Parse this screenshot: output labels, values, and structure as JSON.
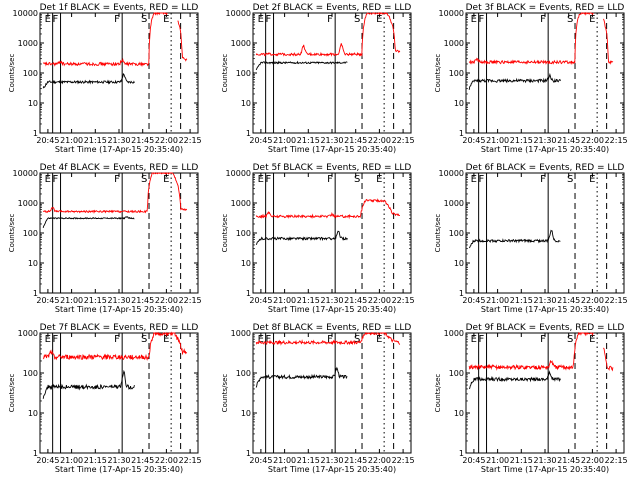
{
  "colors": {
    "events": "#000000",
    "lld": "#ff0000",
    "axis": "#000000",
    "background": "#ffffff"
  },
  "shared": {
    "xlabel": "Start Time (17-Apr-15 20:35:40)",
    "ylabel": "Counts/sec",
    "x_ticks": [
      "20:45",
      "21:00",
      "21:15",
      "21:30",
      "21:45",
      "22:00",
      "22:15"
    ],
    "y_ticks": [
      "1",
      "10",
      "100",
      "1000",
      "10000"
    ],
    "xlim_minutes_after_20_40": [
      0,
      100
    ],
    "ylim": [
      1,
      10000
    ],
    "yscale": "log",
    "marker_letters": {
      "E": "E",
      "F": "F",
      "S": "S"
    }
  },
  "chart_data": [
    {
      "type": "line",
      "title": "Det 1f BLACK = Events, RED = LLD",
      "ylim": [
        1,
        10000
      ],
      "markers": [
        {
          "label": "E",
          "x": "20:48",
          "style": "solid"
        },
        {
          "label": "F",
          "x": "20:53",
          "style": "solid"
        },
        {
          "label": "F",
          "x": "21:32",
          "style": "solid"
        },
        {
          "label": "S",
          "x": "21:49",
          "style": "dashed"
        },
        {
          "label": "E",
          "x": "22:03",
          "style": "dotted"
        },
        {
          "label": "",
          "x": "22:09",
          "style": "dashed"
        }
      ],
      "series": [
        {
          "name": "Events",
          "color": "black",
          "start": "20:42",
          "end": "21:40",
          "level": 50,
          "initial": 30,
          "bumps": [
            {
              "x": "21:33",
              "height": 90
            }
          ],
          "noise": 0.04,
          "gaps": []
        },
        {
          "name": "LLD",
          "color": "red",
          "start": "20:42",
          "end": "22:13",
          "level": 200,
          "bumps": [
            {
              "x": "20:53",
              "height": 240
            },
            {
              "x": "21:32",
              "height": 260
            }
          ],
          "noise": 0.05,
          "flare": {
            "start": "21:49",
            "end": "22:10",
            "peak": 10000,
            "after": 300
          },
          "gaps": [
            [
              "22:01",
              "22:07"
            ]
          ]
        }
      ]
    },
    {
      "type": "line",
      "title": "Det 2f BLACK = Events, RED = LLD",
      "ylim": [
        1,
        10000
      ],
      "markers": [
        {
          "label": "E",
          "x": "20:48",
          "style": "solid"
        },
        {
          "label": "F",
          "x": "20:53",
          "style": "solid"
        },
        {
          "label": "F",
          "x": "21:32",
          "style": "solid"
        },
        {
          "label": "S",
          "x": "21:49",
          "style": "dashed"
        },
        {
          "label": "E",
          "x": "22:03",
          "style": "dotted"
        },
        {
          "label": "",
          "x": "22:09",
          "style": "dashed"
        }
      ],
      "series": [
        {
          "name": "Events",
          "color": "black",
          "start": "20:42",
          "end": "21:40",
          "level": 220,
          "initial": 120,
          "bumps": [],
          "noise": 0.03,
          "gaps": []
        },
        {
          "name": "LLD",
          "color": "red",
          "start": "20:42",
          "end": "22:13",
          "level": 420,
          "bumps": [
            {
              "x": "21:12",
              "height": 800
            },
            {
              "x": "21:36",
              "height": 900
            }
          ],
          "noise": 0.04,
          "flare": {
            "start": "21:49",
            "end": "22:10",
            "peak": 10000,
            "after": 550
          },
          "gaps": []
        }
      ]
    },
    {
      "type": "line",
      "title": "Det 3f BLACK = Events, RED = LLD",
      "ylim": [
        1,
        10000
      ],
      "markers": [
        {
          "label": "E",
          "x": "20:48",
          "style": "solid"
        },
        {
          "label": "F",
          "x": "20:53",
          "style": "solid"
        },
        {
          "label": "F",
          "x": "21:32",
          "style": "solid"
        },
        {
          "label": "S",
          "x": "21:49",
          "style": "dashed"
        },
        {
          "label": "E",
          "x": "22:03",
          "style": "dotted"
        },
        {
          "label": "",
          "x": "22:09",
          "style": "dashed"
        }
      ],
      "series": [
        {
          "name": "Events",
          "color": "black",
          "start": "20:42",
          "end": "21:40",
          "level": 55,
          "initial": 30,
          "bumps": [
            {
              "x": "21:33",
              "height": 80
            }
          ],
          "noise": 0.05,
          "gaps": []
        },
        {
          "name": "LLD",
          "color": "red",
          "start": "20:42",
          "end": "22:13",
          "level": 230,
          "bumps": [
            {
              "x": "20:47",
              "height": 300
            }
          ],
          "noise": 0.05,
          "flare": {
            "start": "21:49",
            "end": "22:10",
            "peak": 10000,
            "after": 240
          },
          "gaps": [
            [
              "22:01",
              "22:07"
            ]
          ]
        }
      ]
    },
    {
      "type": "line",
      "title": "Det 4f BLACK = Events, RED = LLD",
      "ylim": [
        1,
        10000
      ],
      "markers": [
        {
          "label": "E",
          "x": "20:48",
          "style": "solid"
        },
        {
          "label": "F",
          "x": "20:53",
          "style": "solid"
        },
        {
          "label": "F",
          "x": "21:32",
          "style": "solid"
        },
        {
          "label": "S",
          "x": "21:49",
          "style": "dashed"
        },
        {
          "label": "E",
          "x": "22:03",
          "style": "dotted"
        },
        {
          "label": "",
          "x": "22:09",
          "style": "dashed"
        }
      ],
      "series": [
        {
          "name": "Events",
          "color": "black",
          "start": "20:42",
          "end": "21:40",
          "level": 310,
          "initial": 150,
          "bumps": [
            {
              "x": "21:35",
              "height": 340
            }
          ],
          "noise": 0.02,
          "gaps": []
        },
        {
          "name": "LLD",
          "color": "red",
          "start": "20:42",
          "end": "22:13",
          "level": 520,
          "bumps": [
            {
              "x": "20:48",
              "height": 700
            }
          ],
          "noise": 0.03,
          "flare": {
            "start": "21:48",
            "end": "22:09",
            "peak": 10000,
            "after": 650
          },
          "gaps": []
        }
      ]
    },
    {
      "type": "line",
      "title": "Det 5f BLACK = Events, RED = LLD",
      "ylim": [
        1,
        10000
      ],
      "markers": [
        {
          "label": "E",
          "x": "20:48",
          "style": "solid"
        },
        {
          "label": "F",
          "x": "20:53",
          "style": "solid"
        },
        {
          "label": "F",
          "x": "21:32",
          "style": "solid"
        },
        {
          "label": "S",
          "x": "21:49",
          "style": "dashed"
        },
        {
          "label": "E",
          "x": "22:03",
          "style": "dotted"
        },
        {
          "label": "",
          "x": "22:09",
          "style": "dashed"
        }
      ],
      "series": [
        {
          "name": "Events",
          "color": "black",
          "start": "20:42",
          "end": "21:40",
          "level": 65,
          "initial": 40,
          "bumps": [
            {
              "x": "21:34",
              "height": 110
            }
          ],
          "noise": 0.04,
          "gaps": []
        },
        {
          "name": "LLD",
          "color": "red",
          "start": "20:42",
          "end": "22:13",
          "level": 360,
          "bumps": [
            {
              "x": "20:50",
              "height": 480
            },
            {
              "x": "21:30",
              "height": 420
            }
          ],
          "noise": 0.04,
          "flare": {
            "start": "21:48",
            "end": "22:08",
            "peak": 1200,
            "after": 450
          },
          "gaps": []
        }
      ]
    },
    {
      "type": "line",
      "title": "Det 6f BLACK = Events, RED = LLD",
      "ylim": [
        1,
        10000
      ],
      "markers": [
        {
          "label": "E",
          "x": "20:48",
          "style": "solid"
        },
        {
          "label": "F",
          "x": "20:53",
          "style": "solid"
        },
        {
          "label": "F",
          "x": "21:32",
          "style": "solid"
        },
        {
          "label": "S",
          "x": "21:49",
          "style": "dashed"
        },
        {
          "label": "E",
          "x": "22:03",
          "style": "dotted"
        },
        {
          "label": "",
          "x": "22:09",
          "style": "dashed"
        }
      ],
      "series": [
        {
          "name": "Events",
          "color": "black",
          "start": "20:42",
          "end": "21:40",
          "level": 55,
          "initial": 30,
          "bumps": [
            {
              "x": "21:34",
              "height": 120
            }
          ],
          "noise": 0.04,
          "gaps": []
        }
      ]
    },
    {
      "type": "line",
      "title": "Det 7f BLACK = Events, RED = LLD",
      "ylim": [
        1,
        1000
      ],
      "markers": [
        {
          "label": "E",
          "x": "20:48",
          "style": "solid"
        },
        {
          "label": "F",
          "x": "20:53",
          "style": "solid"
        },
        {
          "label": "F",
          "x": "21:32",
          "style": "solid"
        },
        {
          "label": "S",
          "x": "21:49",
          "style": "dashed"
        },
        {
          "label": "E",
          "x": "22:03",
          "style": "dotted"
        },
        {
          "label": "",
          "x": "22:09",
          "style": "dashed"
        }
      ],
      "series": [
        {
          "name": "Events",
          "color": "black",
          "start": "20:42",
          "end": "21:40",
          "level": 45,
          "initial": 25,
          "bumps": [
            {
              "x": "21:33",
              "height": 100
            }
          ],
          "noise": 0.05,
          "gaps": []
        },
        {
          "name": "LLD",
          "color": "red",
          "start": "20:42",
          "end": "22:13",
          "level": 250,
          "bumps": [
            {
              "x": "20:47",
              "height": 330
            }
          ],
          "noise": 0.06,
          "flare": {
            "start": "21:49",
            "end": "22:10",
            "peak": 1000,
            "after": 350
          },
          "gaps": []
        }
      ]
    },
    {
      "type": "line",
      "title": "Det 8f BLACK = Events, RED = LLD",
      "ylim": [
        1,
        1000
      ],
      "markers": [
        {
          "label": "E",
          "x": "20:48",
          "style": "solid"
        },
        {
          "label": "F",
          "x": "20:53",
          "style": "solid"
        },
        {
          "label": "F",
          "x": "21:32",
          "style": "solid"
        },
        {
          "label": "S",
          "x": "21:49",
          "style": "dashed"
        },
        {
          "label": "E",
          "x": "22:03",
          "style": "dotted"
        },
        {
          "label": "",
          "x": "22:09",
          "style": "dashed"
        }
      ],
      "series": [
        {
          "name": "Events",
          "color": "black",
          "start": "20:42",
          "end": "21:40",
          "level": 80,
          "initial": 45,
          "bumps": [
            {
              "x": "21:33",
              "height": 130
            }
          ],
          "noise": 0.04,
          "gaps": []
        },
        {
          "name": "LLD",
          "color": "red",
          "start": "20:42",
          "end": "22:13",
          "level": 580,
          "bumps": [],
          "noise": 0.04,
          "flare": {
            "start": "21:48",
            "end": "22:08",
            "peak": 1000,
            "after": 650
          },
          "gaps": []
        }
      ]
    },
    {
      "type": "line",
      "title": "Det 9f BLACK = Events, RED = LLD",
      "ylim": [
        1,
        1000
      ],
      "markers": [
        {
          "label": "E",
          "x": "20:48",
          "style": "solid"
        },
        {
          "label": "F",
          "x": "20:53",
          "style": "solid"
        },
        {
          "label": "F",
          "x": "21:32",
          "style": "solid"
        },
        {
          "label": "S",
          "x": "21:49",
          "style": "dashed"
        },
        {
          "label": "E",
          "x": "22:03",
          "style": "dotted"
        },
        {
          "label": "",
          "x": "22:09",
          "style": "dashed"
        }
      ],
      "series": [
        {
          "name": "Events",
          "color": "black",
          "start": "20:42",
          "end": "21:40",
          "level": 70,
          "initial": 40,
          "bumps": [
            {
              "x": "21:33",
              "height": 100
            }
          ],
          "noise": 0.04,
          "gaps": []
        },
        {
          "name": "LLD",
          "color": "red",
          "start": "20:42",
          "end": "22:13",
          "level": 140,
          "bumps": [
            {
              "x": "21:34",
              "height": 200
            }
          ],
          "noise": 0.05,
          "flare": {
            "start": "21:48",
            "end": "22:09",
            "peak": 1000,
            "after": 140
          },
          "gaps": [
            [
              "22:01",
              "22:07"
            ]
          ]
        }
      ]
    }
  ]
}
